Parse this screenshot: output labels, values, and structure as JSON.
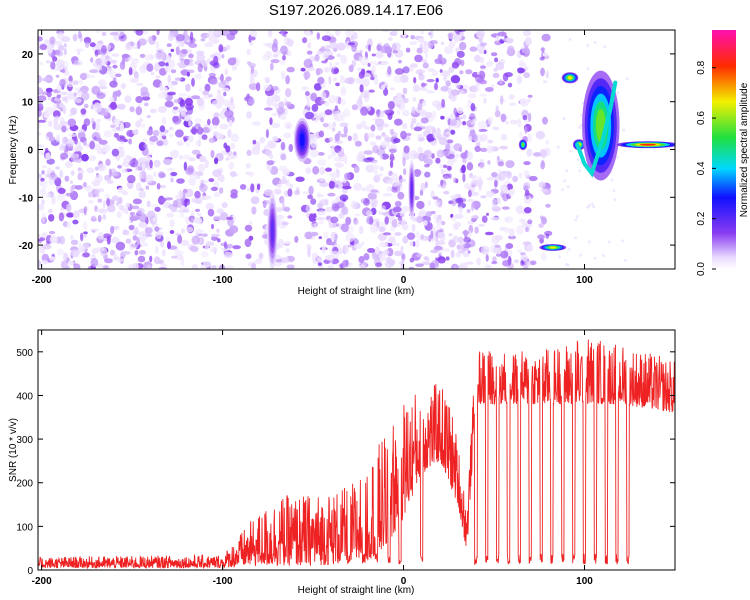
{
  "chart_data": [
    {
      "type": "heatmap",
      "title": "S197.2026.089.14.17.E06",
      "xlabel": "Height of straight line (km)",
      "ylabel": "Frequency (Hz)",
      "xlim": [
        -202,
        150
      ],
      "ylim": [
        -25,
        25
      ],
      "xticks": [
        -200,
        -100,
        0,
        100
      ],
      "yticks": [
        -20,
        -10,
        0,
        10,
        20
      ],
      "colorbar": {
        "label": "Normalized spectral amplitude",
        "range": [
          0,
          0.95
        ],
        "ticks": [
          0,
          0.2,
          0.4,
          0.6,
          0.8
        ],
        "colormap": "rainbow (white-violet-blue-cyan-green-yellow-red-magenta)"
      },
      "features": [
        {
          "x": [
            -60,
            -52
          ],
          "freq": [
            -2,
            6
          ],
          "amp": 0.3
        },
        {
          "x": [
            -75,
            -70
          ],
          "freq": [
            -24,
            -10
          ],
          "amp": 0.2
        },
        {
          "x": [
            3,
            6
          ],
          "freq": [
            -14,
            -3
          ],
          "amp": 0.2
        },
        {
          "x": [
            64,
            68
          ],
          "freq": [
            0,
            2
          ],
          "amp": 0.6
        },
        {
          "x": [
            76,
            89
          ],
          "freq": [
            -21,
            -20
          ],
          "amp": 0.7
        },
        {
          "x": [
            88,
            96
          ],
          "freq": [
            14,
            16
          ],
          "amp": 0.7
        },
        {
          "x": [
            94,
            100
          ],
          "freq": [
            0,
            2
          ],
          "amp": 0.7
        },
        {
          "x": [
            100,
            118
          ],
          "freq": [
            -5,
            15
          ],
          "amp": 0.6
        },
        {
          "x": [
            120,
            150
          ],
          "freq": [
            0.5,
            1.5
          ],
          "amp": 0.85
        }
      ]
    },
    {
      "type": "line",
      "title": "",
      "xlabel": "Height of straight line (km)",
      "ylabel": "SNR (10 * v/v)",
      "xlim": [
        -202,
        150
      ],
      "ylim": [
        0,
        550
      ],
      "xticks": [
        -200,
        -100,
        0,
        100
      ],
      "yticks": [
        0,
        100,
        200,
        300,
        400,
        500
      ],
      "color": "#ee2222",
      "series": [
        {
          "name": "SNR",
          "envelope": [
            {
              "x": -202,
              "low": 5,
              "high": 30
            },
            {
              "x": -100,
              "low": 5,
              "high": 35
            },
            {
              "x": -85,
              "low": 10,
              "high": 110
            },
            {
              "x": -70,
              "low": 10,
              "high": 170
            },
            {
              "x": -50,
              "low": 10,
              "high": 175
            },
            {
              "x": -30,
              "low": 15,
              "high": 190
            },
            {
              "x": -20,
              "low": 20,
              "high": 260
            },
            {
              "x": -10,
              "low": 50,
              "high": 310
            },
            {
              "x": 0,
              "low": 120,
              "high": 400
            },
            {
              "x": 10,
              "low": 220,
              "high": 420
            },
            {
              "x": 20,
              "low": 250,
              "high": 430
            },
            {
              "x": 25,
              "low": 200,
              "high": 400
            },
            {
              "x": 30,
              "low": 150,
              "high": 300
            },
            {
              "x": 35,
              "low": 40,
              "high": 150
            },
            {
              "x": 40,
              "low": 380,
              "high": 510
            },
            {
              "x": 60,
              "low": 380,
              "high": 500
            },
            {
              "x": 80,
              "low": 380,
              "high": 510
            },
            {
              "x": 100,
              "low": 380,
              "high": 540
            },
            {
              "x": 120,
              "low": 380,
              "high": 520
            },
            {
              "x": 150,
              "low": 360,
              "high": 480
            }
          ],
          "dropouts_x": [
            -30,
            -22,
            -15,
            -8,
            -2,
            10,
            40,
            46,
            52,
            58,
            64,
            70,
            76,
            82,
            88,
            94,
            100,
            106,
            112,
            118,
            124
          ],
          "dropout_level": 25
        }
      ]
    }
  ]
}
